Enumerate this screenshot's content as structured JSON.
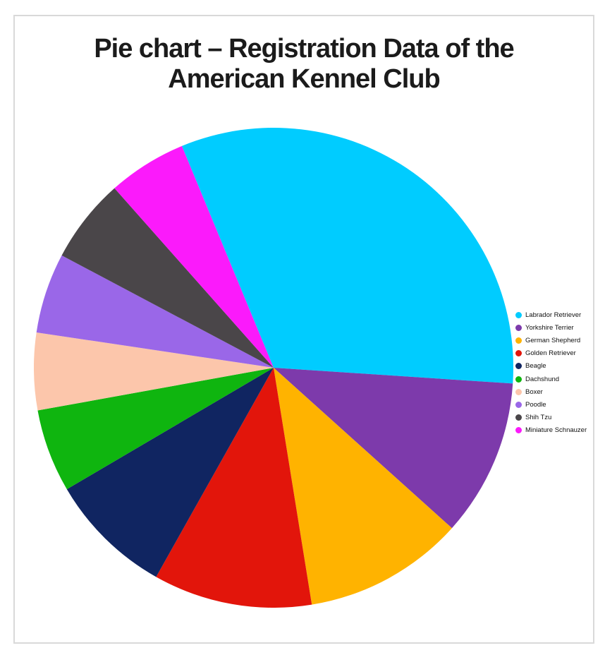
{
  "frame": {
    "background": "#ffffff",
    "border_color": "#d9d9d9"
  },
  "title": "Pie chart – Registration Data of the American Kennel Club",
  "chart_data": {
    "type": "pie",
    "title": "Pie chart – Registration Data of the American Kennel Club",
    "labels": [
      "Labrador Retriever",
      "Yorkshire Terrier",
      "German Shepherd",
      "Golden Retriever",
      "Beagle",
      "Dachshund",
      "Boxer",
      "Poodle",
      "Shih Tzu",
      "Miniature Schnauzer"
    ],
    "values_percent": [
      32.3,
      10.6,
      10.8,
      10.7,
      8.4,
      5.6,
      5.2,
      5.4,
      5.7,
      5.3
    ],
    "colors": [
      "#00ccff",
      "#7d3aab",
      "#ffb300",
      "#e2150b",
      "#102561",
      "#0fb50f",
      "#fcc6ab",
      "#9a67e8",
      "#4a4649",
      "#fb1afb"
    ],
    "start_angle_deg": -22.5,
    "direction": "clockwise",
    "legend_position": "right",
    "data_labels": "none"
  }
}
